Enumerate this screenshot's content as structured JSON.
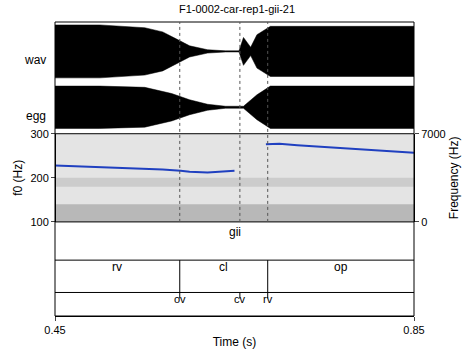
{
  "chart_data": {
    "type": "praat_display",
    "title": "F1-0002-car-rep1-gii-21",
    "x_label": "Time (s)",
    "xlim": [
      0.45,
      0.85
    ],
    "xticks": [
      0.45,
      0.85
    ],
    "signals": [
      {
        "name": "wav",
        "color": "#000000",
        "x": [
          0.45,
          0.5,
          0.55,
          0.57,
          0.585,
          0.6,
          0.62,
          0.64,
          0.655,
          0.66,
          0.668,
          0.675,
          0.69,
          0.75,
          0.85
        ],
        "envelope": [
          0.95,
          0.95,
          0.85,
          0.7,
          0.45,
          0.2,
          0.06,
          0.02,
          0.02,
          0.5,
          0.15,
          0.6,
          0.9,
          0.9,
          0.9
        ]
      },
      {
        "name": "egg",
        "color": "#000000",
        "x": [
          0.45,
          0.5,
          0.55,
          0.58,
          0.6,
          0.62,
          0.64,
          0.66,
          0.675,
          0.69,
          0.75,
          0.85
        ],
        "envelope": [
          0.85,
          0.85,
          0.8,
          0.55,
          0.3,
          0.12,
          0.04,
          0.04,
          0.5,
          0.85,
          0.85,
          0.85
        ]
      }
    ],
    "f0": {
      "y_label": "f0 (Hz)",
      "ylim": [
        100,
        300
      ],
      "yticks": [
        100,
        200,
        300
      ],
      "color": "#2040c0",
      "x": [
        0.45,
        0.48,
        0.51,
        0.54,
        0.57,
        0.59,
        0.6,
        0.62,
        0.64,
        0.65,
        0.66,
        0.685,
        0.7,
        0.72,
        0.75,
        0.78,
        0.81,
        0.84,
        0.85
      ],
      "values": [
        228,
        226,
        224,
        222,
        219,
        216,
        214,
        212,
        214,
        216,
        null,
        276,
        277,
        274,
        270,
        266,
        262,
        258,
        257
      ]
    },
    "spectrogram": {
      "y_label": "Frequency (Hz)",
      "ylim": [
        0,
        7000
      ],
      "yticks": [
        0,
        7000
      ]
    },
    "tiers": [
      {
        "type": "interval",
        "intervals": [
          {
            "label": "gii",
            "start": 0.45,
            "end": 0.85
          }
        ]
      },
      {
        "type": "interval",
        "intervals": [
          {
            "label": "rv",
            "start": 0.45,
            "end": 0.589
          },
          {
            "label": "cl",
            "start": 0.589,
            "end": 0.687
          },
          {
            "label": "op",
            "start": 0.687,
            "end": 0.85
          }
        ]
      },
      {
        "type": "point",
        "points": [
          {
            "label": "ov",
            "time": 0.589
          },
          {
            "label": "cv",
            "time": 0.656
          },
          {
            "label": "rv",
            "time": 0.687
          }
        ]
      }
    ]
  }
}
